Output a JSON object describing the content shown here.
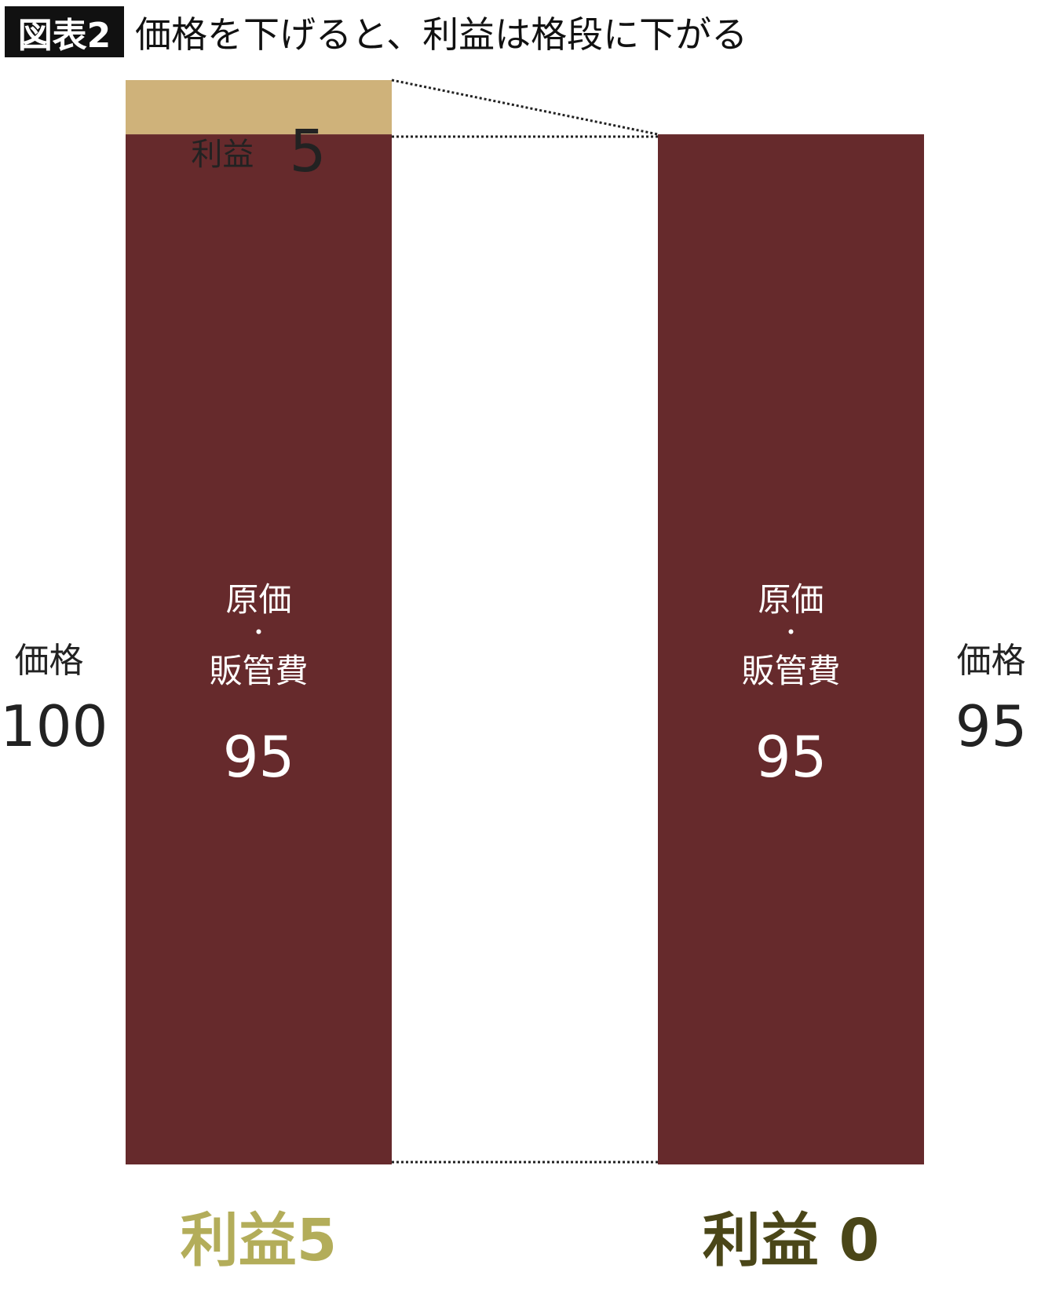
{
  "title": {
    "badge": "図表2",
    "text": "価格を下げると、利益は格段に下がる"
  },
  "colors": {
    "profit": "#cfb27a",
    "cost": "#662a2c",
    "label_left": "#b3ad5a",
    "label_right": "#4a4618"
  },
  "chart_data": {
    "type": "bar",
    "stacked": true,
    "categories": [
      "利益5",
      "利益 0"
    ],
    "series": [
      {
        "name": "原価・販管費",
        "values": [
          95,
          95
        ]
      },
      {
        "name": "利益",
        "values": [
          5,
          0
        ]
      }
    ],
    "ylim": [
      0,
      100
    ],
    "price_labels": [
      {
        "label": "価格",
        "value": "100"
      },
      {
        "label": "価格",
        "value": "95"
      }
    ],
    "inner_labels": [
      {
        "line1": "原価",
        "dot": "・",
        "line2": "販管費",
        "value": "95"
      },
      {
        "line1": "原価",
        "dot": "・",
        "line2": "販管費",
        "value": "95"
      }
    ],
    "profit_label": {
      "label": "利益",
      "value": "5"
    }
  }
}
